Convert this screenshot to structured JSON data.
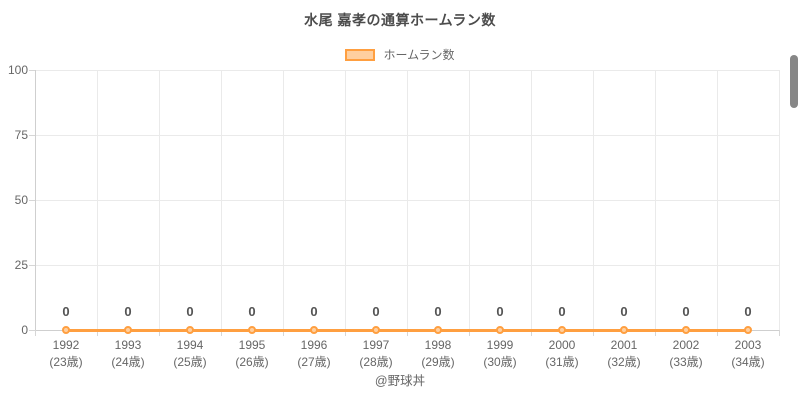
{
  "title": "水尾 嘉孝の通算ホームラン数",
  "legend": {
    "label": "ホームラン数"
  },
  "caption": "@野球丼",
  "colors": {
    "line": "#FF9F40",
    "marker_fill": "#FFCF9F",
    "grid": "#EAEAEA",
    "axis": "#CFCFCF",
    "tick_text": "#666666",
    "title_text": "#4C4C4C",
    "point_label_text": "#545454"
  },
  "chart_data": {
    "type": "line",
    "title": "水尾 嘉孝の通算ホームラン数",
    "categories": [
      "1992",
      "1993",
      "1994",
      "1995",
      "1996",
      "1997",
      "1998",
      "1999",
      "2000",
      "2001",
      "2002",
      "2003"
    ],
    "category_sublabels": [
      "(23歳)",
      "(24歳)",
      "(25歳)",
      "(26歳)",
      "(27歳)",
      "(28歳)",
      "(29歳)",
      "(30歳)",
      "(31歳)",
      "(32歳)",
      "(33歳)",
      "(34歳)"
    ],
    "series": [
      {
        "name": "ホームラン数",
        "values": [
          0,
          0,
          0,
          0,
          0,
          0,
          0,
          0,
          0,
          0,
          0,
          0
        ]
      }
    ],
    "xlabel": "",
    "ylabel": "",
    "ylim": [
      0,
      100
    ],
    "yticks": [
      0,
      25,
      50,
      75,
      100
    ],
    "grid": true,
    "legend_position": "top",
    "point_labels": true,
    "annotations": [
      "@野球丼"
    ]
  }
}
